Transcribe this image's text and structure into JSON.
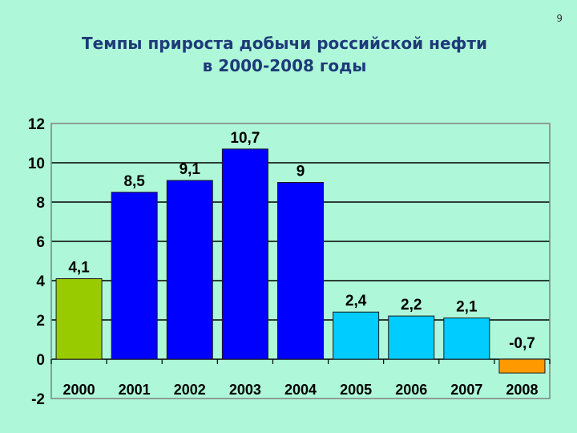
{
  "page_number": "9",
  "title_line1": "Темпы прироста добычи российской нефти",
  "title_line2": "в 2000-2008 годы",
  "chart_data": {
    "type": "bar",
    "title": "Темпы прироста добычи российской нефти в 2000-2008 годы",
    "categories": [
      "2000",
      "2001",
      "2002",
      "2003",
      "2004",
      "2005",
      "2006",
      "2007",
      "2008"
    ],
    "values": [
      4.1,
      8.5,
      9.1,
      10.7,
      9,
      2.4,
      2.2,
      2.1,
      -0.7
    ],
    "data_labels": [
      "4,1",
      "8,5",
      "9,1",
      "10,7",
      "9",
      "2,4",
      "2,2",
      "2,1",
      "-0,7"
    ],
    "bar_colors": [
      "#99cc00",
      "#0000ff",
      "#0000ff",
      "#0000ff",
      "#0000ff",
      "#00ccff",
      "#00ccff",
      "#00ccff",
      "#ff9900"
    ],
    "yticks": [
      -2,
      0,
      2,
      4,
      6,
      8,
      10,
      12
    ],
    "ytick_labels": [
      "-2",
      "0",
      "2",
      "4",
      "6",
      "8",
      "10",
      "12"
    ],
    "ylim": [
      -2,
      12
    ],
    "xlabel": "",
    "ylabel": "",
    "grid": true,
    "legend": "none"
  }
}
